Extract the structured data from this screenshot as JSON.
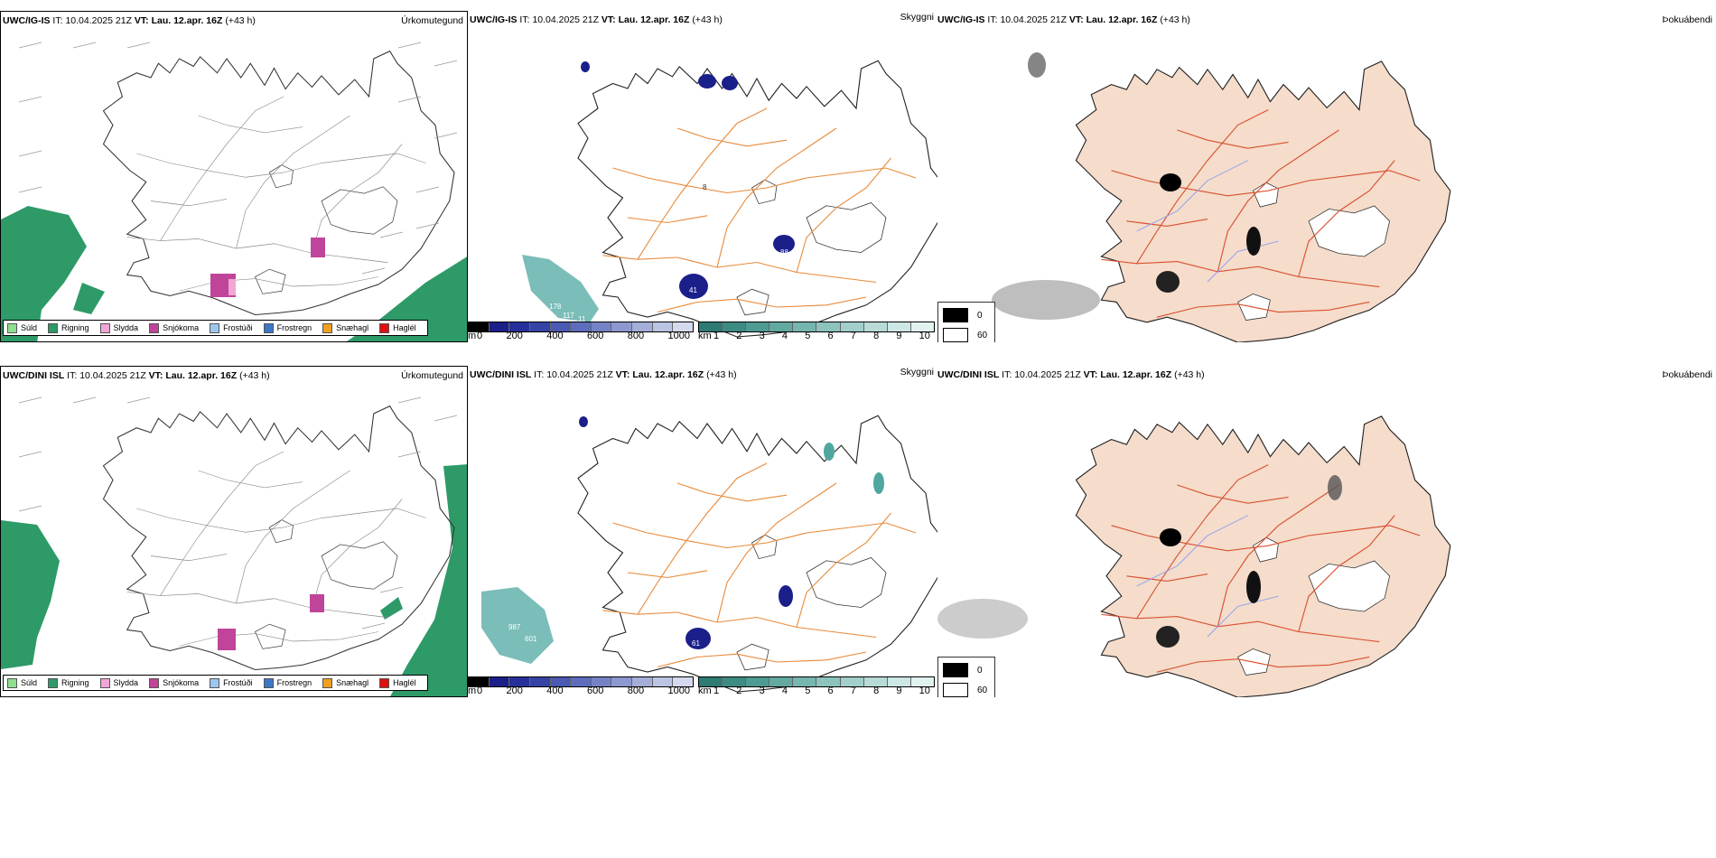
{
  "colors": {
    "sea_green": "#2e9a68",
    "snow_pink": "#c0449a",
    "road_orange": "#e88a3a",
    "land_peach": "#f5dccb",
    "road_red": "#d9502f",
    "river_blue": "#8a9ff0",
    "elev_dark": "#1b1f8a",
    "teal": "#4fa7a0"
  },
  "rows": [
    {
      "model": "UWC/IG-IS",
      "it_label": "IT:",
      "it_value": "10.04.2025 21Z",
      "vt_label": "VT:",
      "vt_value": "Lau. 12.apr. 16Z",
      "lead": "(+43 h)",
      "precip_title": "Úrkomutegund",
      "vis_title": "Skyggni",
      "cloud_title": "Þokuábendi",
      "vis_labels": [
        "178",
        "117",
        "11",
        "41",
        "88",
        "8"
      ]
    },
    {
      "model": "UWC/DINI ISL",
      "it_label": "IT:",
      "it_value": "10.04.2025 21Z",
      "vt_label": "VT:",
      "vt_value": "Lau. 12.apr. 16Z",
      "lead": "(+43 h)",
      "precip_title": "Úrkomutegund",
      "vis_title": "Skyggni",
      "cloud_title": "Þokuábendi",
      "vis_labels": [
        "987",
        "601",
        "61"
      ]
    }
  ],
  "precip_legend": [
    {
      "label": "Súld",
      "color": "#8ee08e"
    },
    {
      "label": "Rigning",
      "color": "#2e9a68"
    },
    {
      "label": "Slydda",
      "color": "#f2a6d4"
    },
    {
      "label": "Snjókoma",
      "color": "#c0449a"
    },
    {
      "label": "Frostúði",
      "color": "#9cc6f0"
    },
    {
      "label": "Frostregn",
      "color": "#3b78c8"
    },
    {
      "label": "Snæhagl",
      "color": "#f0a020"
    },
    {
      "label": "Haglél",
      "color": "#e01010"
    }
  ],
  "elev_bar": {
    "unit": "m",
    "ticks": [
      "0",
      "200",
      "400",
      "600",
      "800",
      "1000"
    ],
    "colors": [
      "#000000",
      "#1b1f8a",
      "#27309a",
      "#3643a6",
      "#4a59b2",
      "#5d6cbc",
      "#7583c6",
      "#8c98cf",
      "#a4aed9",
      "#bcc4e3",
      "#d4d9ee"
    ]
  },
  "vis_bar": {
    "unit": "km",
    "ticks": [
      "1",
      "2",
      "3",
      "4",
      "5",
      "6",
      "7",
      "8",
      "9",
      "10"
    ],
    "colors": [
      "#2d7b73",
      "#3d8c84",
      "#4f9b93",
      "#62a9a1",
      "#77b6af",
      "#8cc3bd",
      "#a2cfca",
      "#b8dbd7",
      "#cde7e4",
      "#e2f2f0"
    ]
  },
  "cloud_legend": [
    {
      "label": "0",
      "color": "#000000"
    },
    {
      "label": "60",
      "color": "#ffffff"
    }
  ]
}
